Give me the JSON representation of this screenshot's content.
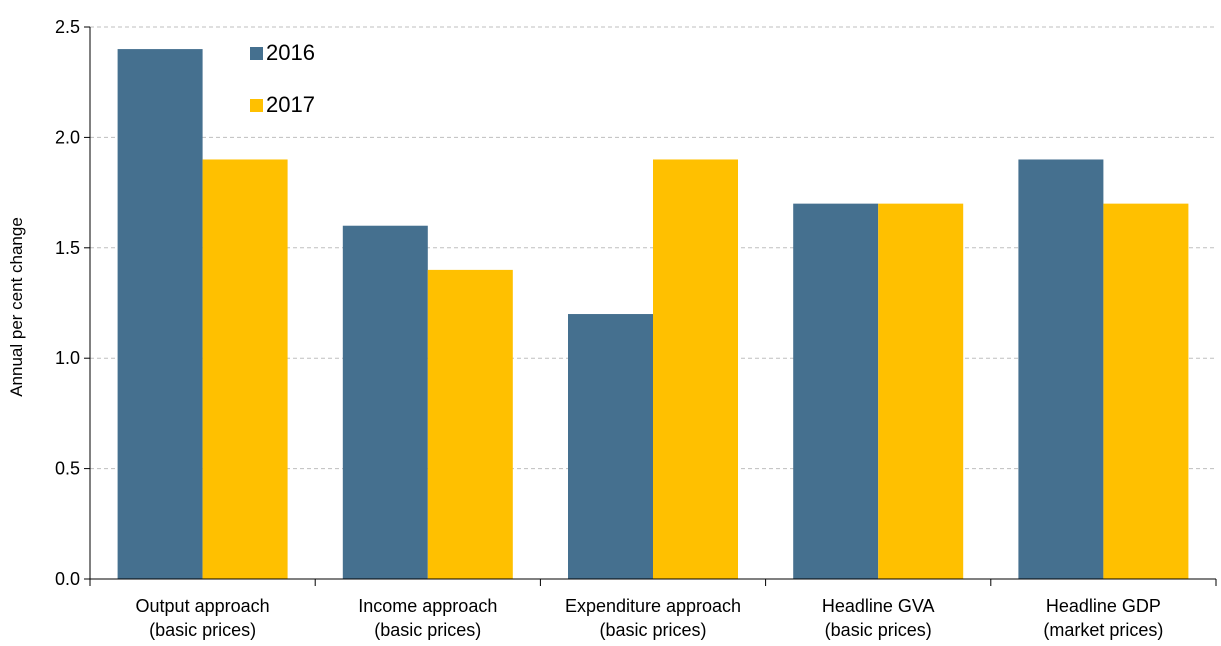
{
  "chart_data": {
    "type": "bar",
    "title": "",
    "ylabel": "Annual per cent change",
    "xlabel": "",
    "ylim": [
      0,
      2.5
    ],
    "yticks": [
      "0.0",
      "0.5",
      "1.0",
      "1.5",
      "2.0",
      "2.5"
    ],
    "grid": true,
    "legend_position": "top-left",
    "categories": [
      [
        "Output approach",
        "(basic prices)"
      ],
      [
        "Income approach",
        "(basic prices)"
      ],
      [
        "Expenditure approach",
        "(basic prices)"
      ],
      [
        "Headline GVA",
        "(basic prices)"
      ],
      [
        "Headline GDP",
        "(market prices)"
      ]
    ],
    "series": [
      {
        "name": "2016",
        "color": "#45708F",
        "values": [
          2.4,
          1.6,
          1.2,
          1.7,
          1.9
        ]
      },
      {
        "name": "2017",
        "color": "#FFC000",
        "values": [
          1.9,
          1.4,
          1.9,
          1.7,
          1.7
        ]
      }
    ]
  }
}
